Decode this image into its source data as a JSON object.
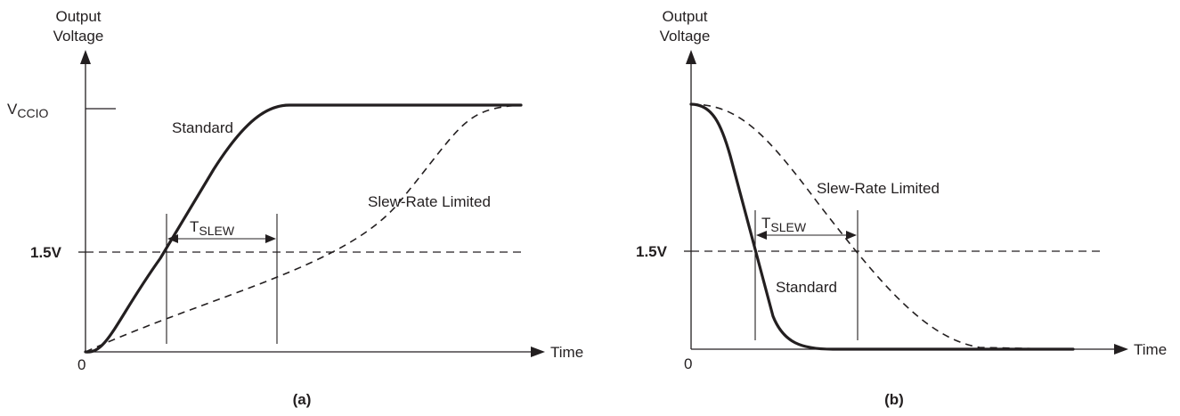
{
  "colors": {
    "ink": "#231f20",
    "background": "#ffffff"
  },
  "panel_a": {
    "y_axis_label_line1": "Output",
    "y_axis_label_line2": "Voltage",
    "vccio_main": "V",
    "vccio_sub": "CCIO",
    "threshold_label": "1.5V",
    "origin_label": "0",
    "x_axis_label": "Time",
    "standard_label": "Standard",
    "slew_label": "Slew-Rate Limited",
    "tslew_main": "T",
    "tslew_sub": "SLEW",
    "caption": "(a)"
  },
  "panel_b": {
    "y_axis_label_line1": "Output",
    "y_axis_label_line2": "Voltage",
    "threshold_label": "1.5V",
    "origin_label": "0",
    "x_axis_label": "Time",
    "standard_label": "Standard",
    "slew_label": "Slew-Rate Limited",
    "tslew_main": "T",
    "tslew_sub": "SLEW",
    "caption": "(b)"
  }
}
